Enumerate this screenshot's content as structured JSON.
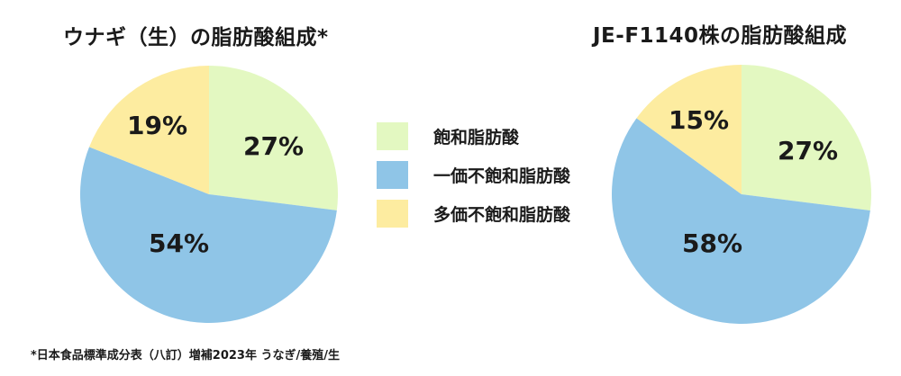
{
  "titles": {
    "left": "ウナギ（生）の脂肪酸組成*",
    "right": "JE-F1140株の脂肪酸組成"
  },
  "legend": [
    {
      "label": "飽和脂肪酸",
      "color": "#e3f8c1"
    },
    {
      "label": "一価不飽和脂肪酸",
      "color": "#8fc5e7"
    },
    {
      "label": "多価不飽和脂肪酸",
      "color": "#fdeca0"
    }
  ],
  "footnote": "*日本食品標準成分表（八訂）増補2023年 うなぎ/養殖/生",
  "pies": {
    "left": {
      "labels": [
        "27%",
        "54%",
        "19%"
      ]
    },
    "right": {
      "labels": [
        "27%",
        "58%",
        "15%"
      ]
    }
  },
  "chart_data": [
    {
      "type": "pie",
      "title": "ウナギ（生）の脂肪酸組成*",
      "categories": [
        "飽和脂肪酸",
        "一価不飽和脂肪酸",
        "多価不飽和脂肪酸"
      ],
      "values": [
        27,
        54,
        19
      ],
      "unit": "%",
      "legend_position": "center-between-charts"
    },
    {
      "type": "pie",
      "title": "JE-F1140株の脂肪酸組成",
      "categories": [
        "飽和脂肪酸",
        "一価不飽和脂肪酸",
        "多価不飽和脂肪酸"
      ],
      "values": [
        27,
        58,
        15
      ],
      "unit": "%",
      "legend_position": "center-between-charts"
    }
  ]
}
